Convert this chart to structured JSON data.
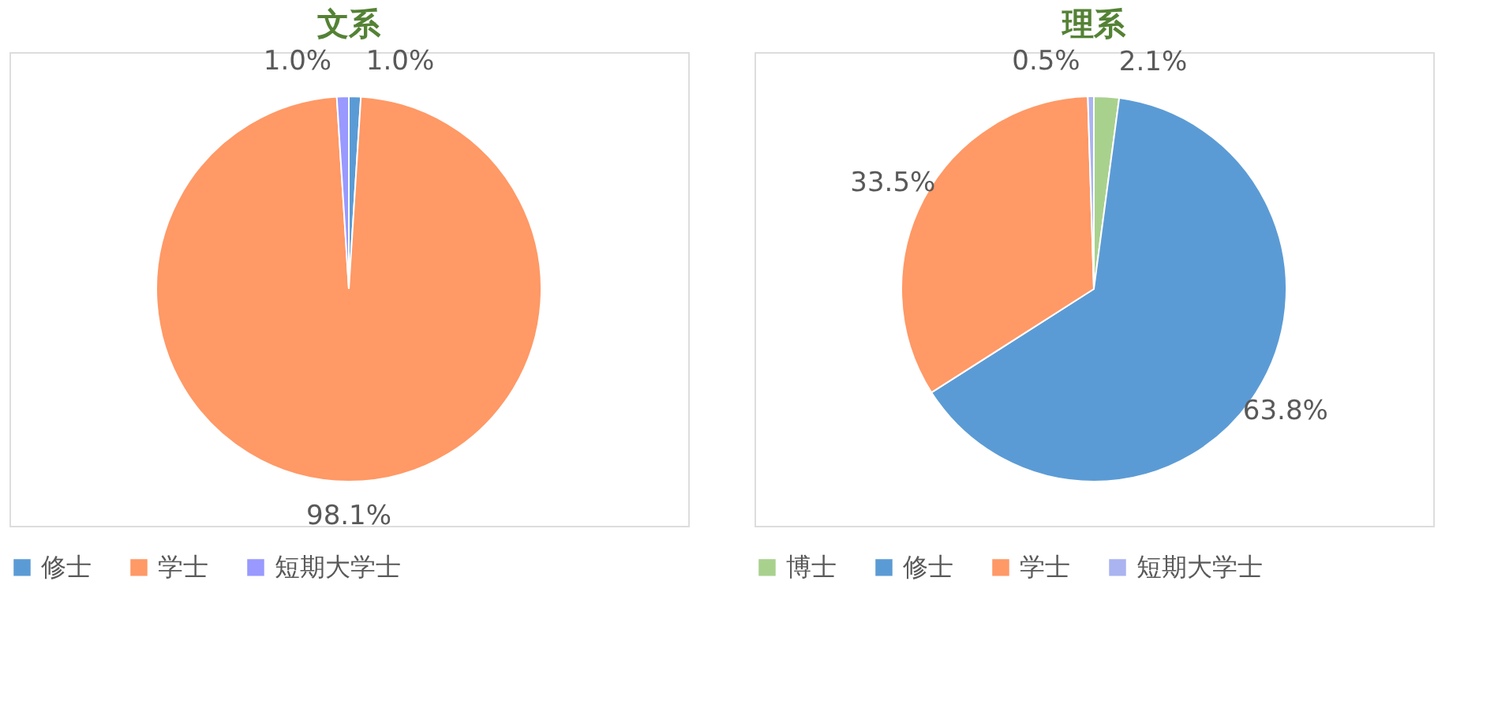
{
  "chart_data": [
    {
      "type": "pie",
      "title": "文系",
      "categories": [
        "修士",
        "学士",
        "短期大学士"
      ],
      "values": [
        1.0,
        98.1,
        1.0
      ],
      "colors": [
        "#5b9bd5",
        "#ff9966",
        "#9999ff"
      ],
      "value_labels": [
        "1.0%",
        "98.1%",
        "1.0%"
      ],
      "legend": "bottom"
    },
    {
      "type": "pie",
      "title": "理系",
      "categories": [
        "博士",
        "修士",
        "学士",
        "短期大学士"
      ],
      "values": [
        2.1,
        63.8,
        33.5,
        0.5
      ],
      "colors": [
        "#a9d18e",
        "#5b9bd5",
        "#ff9966",
        "#aab4f0"
      ],
      "value_labels": [
        "2.1%",
        "63.8%",
        "33.5%",
        "0.5%"
      ],
      "legend": "bottom"
    }
  ]
}
